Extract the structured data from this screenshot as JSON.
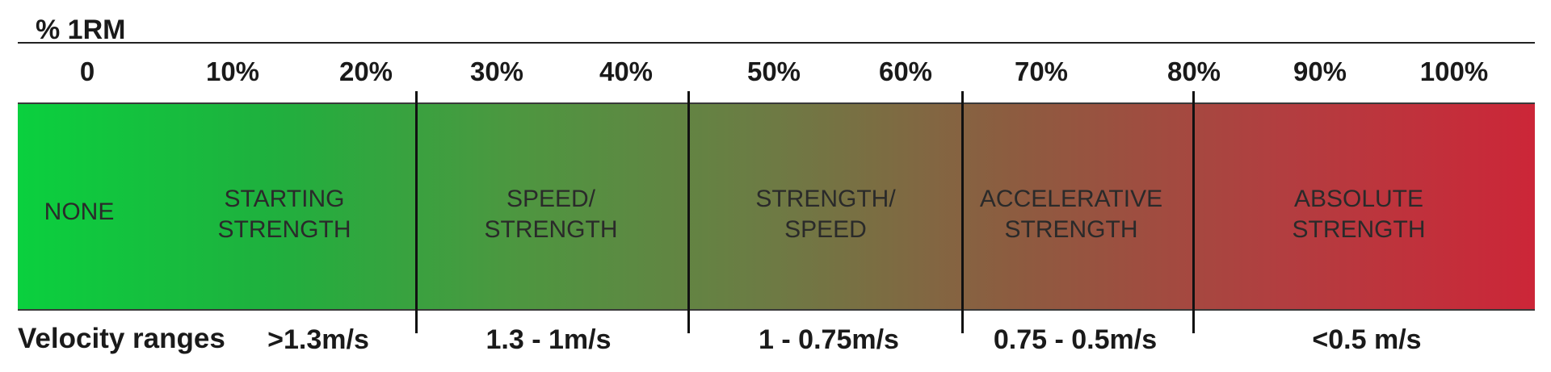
{
  "axis": {
    "unit_label": "% 1RM",
    "ticks": [
      "0",
      "10%",
      "20%",
      "30%",
      "40%",
      "50%",
      "60%",
      "70%",
      "80%",
      "90%",
      "100%"
    ]
  },
  "band": {
    "gradient_colors": [
      "#0ad03e",
      "#1fb03e",
      "#4e9640",
      "#6e7a44",
      "#8f5a40",
      "#b23e40",
      "#cc2638"
    ]
  },
  "zones": [
    {
      "line1": "NONE",
      "line2": ""
    },
    {
      "line1": "STARTING",
      "line2": "STRENGTH"
    },
    {
      "line1": "SPEED/",
      "line2": "STRENGTH"
    },
    {
      "line1": "STRENGTH/",
      "line2": "SPEED"
    },
    {
      "line1": "ACCELERATIVE",
      "line2": "STRENGTH"
    },
    {
      "line1": "ABSOLUTE",
      "line2": "STRENGTH"
    }
  ],
  "velocity": {
    "title": "Velocity ranges",
    "ranges": [
      ">1.3m/s",
      "1.3 - 1m/s",
      "1 - 0.75m/s",
      "0.75 - 0.5m/s",
      "<0.5 m/s"
    ]
  }
}
